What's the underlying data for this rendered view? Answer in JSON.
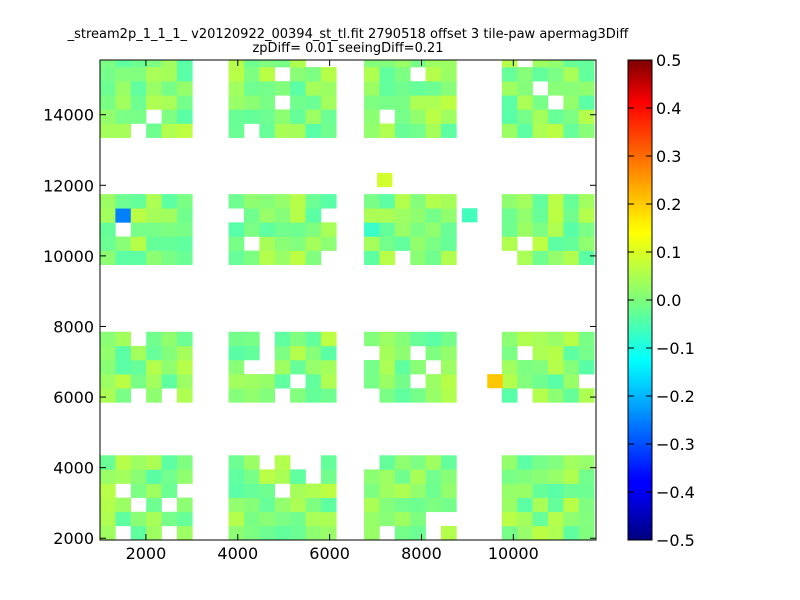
{
  "chart_data": {
    "type": "heatmap",
    "title_lines": [
      "_stream2p_1_1_1_ v20120922_00394_st_tl.fit 2790518 offset 3 tile-paw apermag3Diff",
      "zpDiff= 0.01 seeingDiff=0.21"
    ],
    "xlabel": "",
    "ylabel": "",
    "xlim": [
      1000,
      11800
    ],
    "ylim": [
      1950,
      15550
    ],
    "x_ticks": [
      2000,
      4000,
      6000,
      8000,
      10000
    ],
    "y_ticks": [
      2000,
      4000,
      6000,
      8000,
      10000,
      12000,
      14000
    ],
    "cell_size": [
      335,
      400
    ],
    "grid": false,
    "colorbar": {
      "colormap": "jet",
      "vmin": -0.5,
      "vmax": 0.5,
      "ticks": [
        0.5,
        0.4,
        0.3,
        0.2,
        0.1,
        0.0,
        -0.1,
        -0.2,
        -0.3,
        -0.4,
        -0.5
      ],
      "tick_labels": [
        "0.5",
        "0.4",
        "0.3",
        "0.2",
        "0.1",
        "0.0",
        "−0.1",
        "−0.2",
        "−0.3",
        "−0.4",
        "−0.5"
      ]
    },
    "blocks": [
      {
        "x": [
          1000,
          3000
        ],
        "y": [
          13350,
          15550
        ]
      },
      {
        "x": [
          3800,
          6000
        ],
        "y": [
          13350,
          15550
        ]
      },
      {
        "x": [
          6750,
          8700
        ],
        "y": [
          13350,
          15550
        ]
      },
      {
        "x": [
          9750,
          11800
        ],
        "y": [
          13350,
          15550
        ]
      },
      {
        "x": [
          1000,
          3000
        ],
        "y": [
          9750,
          11900
        ]
      },
      {
        "x": [
          3800,
          6000
        ],
        "y": [
          9750,
          11900
        ]
      },
      {
        "x": [
          6750,
          8700
        ],
        "y": [
          9750,
          11900
        ]
      },
      {
        "x": [
          9750,
          11800
        ],
        "y": [
          9750,
          11900
        ]
      },
      {
        "x": [
          1000,
          3000
        ],
        "y": [
          5850,
          8000
        ]
      },
      {
        "x": [
          3800,
          6000
        ],
        "y": [
          5850,
          8000
        ]
      },
      {
        "x": [
          6750,
          8700
        ],
        "y": [
          5850,
          8000
        ]
      },
      {
        "x": [
          9750,
          11800
        ],
        "y": [
          5850,
          8000
        ]
      },
      {
        "x": [
          1000,
          3000
        ],
        "y": [
          1950,
          4150
        ]
      },
      {
        "x": [
          3800,
          6000
        ],
        "y": [
          1950,
          4150
        ]
      },
      {
        "x": [
          6750,
          8700
        ],
        "y": [
          1950,
          4150
        ]
      },
      {
        "x": [
          9750,
          11800
        ],
        "y": [
          1950,
          4150
        ]
      }
    ],
    "highlight_cells": [
      {
        "x": 1550,
        "y": 11150,
        "value": -0.25
      },
      {
        "x": 1550,
        "y": 13750,
        "value": -0.08
      },
      {
        "x": 3900,
        "y": 15350,
        "value": 0.2
      },
      {
        "x": 7200,
        "y": 12150,
        "value": 0.08
      },
      {
        "x": 9600,
        "y": 6450,
        "value": 0.18
      },
      {
        "x": 6900,
        "y": 10650,
        "value": -0.07
      },
      {
        "x": 9050,
        "y": 11150,
        "value": -0.06
      },
      {
        "x": 5200,
        "y": 7250,
        "value": 0.05
      }
    ]
  }
}
